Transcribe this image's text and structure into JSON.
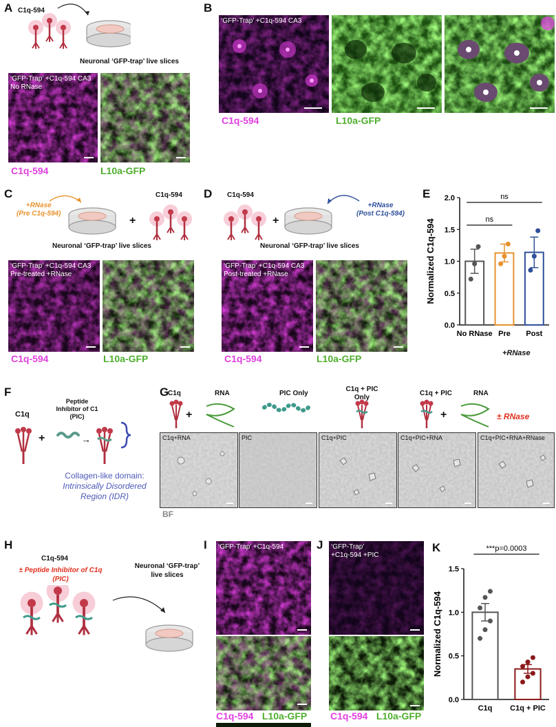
{
  "panels": {
    "A": {
      "label": "A",
      "reagent": "C1q-594",
      "caption": "Neuronal ‘GFP-trap’ live slices",
      "overlay_line1": "‘GFP-Trap’ +C1q-594 CA3",
      "overlay_line2": "No RNase",
      "left_caption": "C1q-594",
      "right_caption": "L10a-GFP"
    },
    "B": {
      "label": "B",
      "overlay": "‘GFP-Trap’ +C1q-594 CA3",
      "left_caption": "C1q-594",
      "mid_caption": "L10a-GFP"
    },
    "C": {
      "label": "C",
      "treatment_line1": "+RNase",
      "treatment_line2": "(Pre C1q-594)",
      "reagent": "C1q-594",
      "plus": "+",
      "caption": "Neuronal ‘GFP-trap’ live slices",
      "overlay_line1": "‘GFP-Trap’ +C1q-594 CA3",
      "overlay_line2": "Pre-treated +RNase",
      "left_caption": "C1q-594",
      "right_caption": "L10a-GFP"
    },
    "D": {
      "label": "D",
      "reagent": "C1q-594",
      "plus": "+",
      "treatment_line1": "+RNase",
      "treatment_line2": "(Post C1q-594)",
      "caption": "Neuronal ‘GFP-trap’ live slices",
      "overlay_line1": "‘GFP-Trap’ +C1q-594 CA3",
      "overlay_line2": "Post-treated +RNase",
      "left_caption": "C1q-594",
      "right_caption": "L10a-GFP"
    },
    "E": {
      "label": "E",
      "sublabel": "+RNase"
    },
    "F": {
      "label": "F",
      "c1q": "C1q",
      "plus": "+",
      "pic_line1": "Peptide",
      "pic_line2": "Inhibitor of C1",
      "pic_line3": "(PIC)",
      "arrow": "→",
      "domain_line1": "Collagen-like domain:",
      "domain_line2": "Intrinsically Disordered",
      "domain_line3": "Region (IDR)"
    },
    "G": {
      "label": "G",
      "headers": [
        "C1q",
        "RNA",
        "PIC Only",
        "C1q + PIC",
        "Only",
        "C1q + PIC",
        "RNA"
      ],
      "plus": "+",
      "rnase": "± RNase",
      "images": [
        "C1q+RNA",
        "PIC",
        "C1q+PIC",
        "C1q+PIC+RNA",
        "C1q+PIC+RNA+RNase"
      ],
      "bf": "BF"
    },
    "H": {
      "label": "H",
      "reagent": "C1q-594",
      "inhibitor_line1": "± Peptide Inhibitor of C1q",
      "inhibitor_line2": "(PIC)",
      "caption_line1": "Neuronal ‘GFP-trap’",
      "caption_line2": "live slices"
    },
    "I": {
      "label": "I",
      "overlay": "‘GFP-Trap’ +C1q-594",
      "caption_mag": "C1q-594",
      "caption_grn": "L10a-GFP"
    },
    "J": {
      "label": "J",
      "overlay_line1": "‘GFP-Trap’",
      "overlay_line2": "+C1q-594 +PIC",
      "caption_mag": "C1q-594",
      "caption_grn": "L10a-GFP"
    },
    "K": {
      "label": "K"
    }
  },
  "chart_data": [
    {
      "type": "bar",
      "panel": "E",
      "ylabel": "Normalized C1q-594",
      "categories": [
        "No RNase",
        "Pre",
        "Post"
      ],
      "values": [
        1.0,
        1.13,
        1.14
      ],
      "errors": [
        0.19,
        0.14,
        0.24
      ],
      "points": [
        [
          0.72,
          0.96,
          1.23
        ],
        [
          0.96,
          1.08,
          1.27
        ],
        [
          0.86,
          1.08,
          1.48
        ]
      ],
      "colors": [
        "#555555",
        "#e8922e",
        "#2e4f9a"
      ],
      "ylim": [
        0,
        2.0
      ],
      "yticks": [
        "0.0",
        "0.5",
        "1.0",
        "1.5",
        "2.0"
      ],
      "sig": [
        {
          "from": 0,
          "to": 1,
          "label": "ns"
        },
        {
          "from": 0,
          "to": 2,
          "label": "ns"
        }
      ]
    },
    {
      "type": "bar",
      "panel": "K",
      "ylabel": "Normalized C1q-594",
      "categories": [
        "C1q",
        "C1q + PIC"
      ],
      "values": [
        1.0,
        0.35
      ],
      "errors": [
        0.1,
        0.05
      ],
      "points": [
        [
          0.7,
          0.8,
          0.9,
          1.05,
          1.17,
          1.24
        ],
        [
          0.2,
          0.26,
          0.3,
          0.38,
          0.43,
          0.48
        ]
      ],
      "colors": [
        "#555555",
        "#8b1a1a"
      ],
      "ylim": [
        0,
        1.5
      ],
      "yticks": [
        "0.0",
        "0.5",
        "1.0",
        "1.5"
      ],
      "sig": [
        {
          "from": 0,
          "to": 1,
          "label": "***p=0.0003"
        }
      ]
    }
  ]
}
